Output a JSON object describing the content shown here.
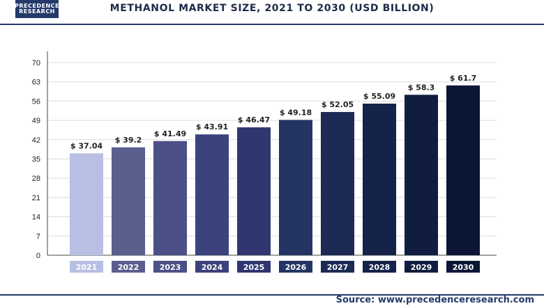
{
  "header": {
    "logo_line1": "PRECEDENCE",
    "logo_line2": "RESEARCH",
    "title": "METHANOL MARKET SIZE, 2021 TO 2030 (USD BILLION)"
  },
  "footer": {
    "source": "Source: www.precedenceresearch.com"
  },
  "chart_data": {
    "type": "bar",
    "title": "METHANOL MARKET SIZE, 2021 TO 2030 (USD BILLION)",
    "categories": [
      "2021",
      "2022",
      "2023",
      "2024",
      "2025",
      "2026",
      "2027",
      "2028",
      "2029",
      "2030"
    ],
    "values": [
      37.04,
      39.2,
      41.49,
      43.91,
      46.47,
      49.18,
      52.05,
      55.09,
      58.3,
      61.7
    ],
    "value_labels": [
      "$ 37.04",
      "$ 39.2",
      "$ 41.49",
      "$ 43.91",
      "$ 46.47",
      "$ 49.18",
      "$ 52.05",
      "$ 55.09",
      "$ 58.3",
      "$ 61.7"
    ],
    "yticks": [
      "0",
      "7",
      "14",
      "21",
      "28",
      "35",
      "42",
      "49",
      "56",
      "63",
      "70"
    ],
    "ylim": [
      0,
      70
    ],
    "grid": true,
    "colors": [
      "#b8bfe3",
      "#5a5f8e",
      "#4b5187",
      "#3c427c",
      "#2f3670",
      "#243563",
      "#1c2a55",
      "#15224a",
      "#101c40",
      "#0c1636"
    ]
  }
}
